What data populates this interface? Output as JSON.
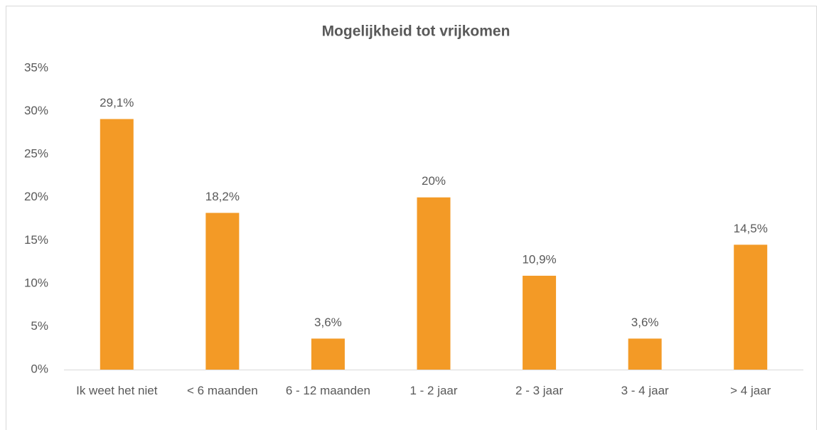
{
  "chart_data": {
    "type": "bar",
    "title": "Mogelijkheid tot vrijkomen",
    "categories": [
      "Ik weet het niet",
      "< 6 maanden",
      "6 - 12 maanden",
      "1 - 2 jaar",
      "2 - 3 jaar",
      "3 - 4 jaar",
      "> 4 jaar"
    ],
    "values": [
      29.1,
      18.2,
      3.6,
      20,
      10.9,
      3.6,
      14.5
    ],
    "value_labels": [
      "29,1%",
      "18,2%",
      "3,6%",
      "20%",
      "10,9%",
      "3,6%",
      "14,5%"
    ],
    "color": "#f39a26",
    "ylim": [
      0,
      35
    ],
    "yticks": [
      {
        "value": 0,
        "label": "0%"
      },
      {
        "value": 5,
        "label": "5%"
      },
      {
        "value": 10,
        "label": "10%"
      },
      {
        "value": 15,
        "label": "15%"
      },
      {
        "value": 20,
        "label": "20%"
      },
      {
        "value": 25,
        "label": "25%"
      },
      {
        "value": 30,
        "label": "30%"
      },
      {
        "value": 35,
        "label": "35%"
      }
    ],
    "grid": false
  }
}
